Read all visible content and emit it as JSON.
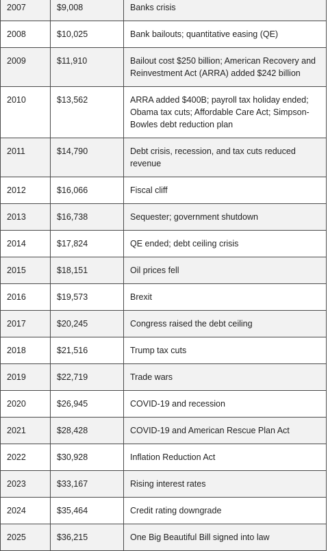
{
  "rows": [
    {
      "year": "2007",
      "debt": "$9,008",
      "event": "Banks crisis"
    },
    {
      "year": "2008",
      "debt": "$10,025",
      "event": "Bank bailouts; quantitative easing (QE)"
    },
    {
      "year": "2009",
      "debt": "$11,910",
      "event": "Bailout cost $250 billion; American Recovery and Reinvestment Act (ARRA) added $242 billion"
    },
    {
      "year": "2010",
      "debt": "$13,562",
      "event": "ARRA added $400B; payroll tax holiday ended; Obama tax cuts; Affordable Care Act; Simpson-Bowles debt reduction plan"
    },
    {
      "year": "2011",
      "debt": "$14,790",
      "event": "Debt crisis, recession, and tax cuts reduced revenue"
    },
    {
      "year": "2012",
      "debt": "$16,066",
      "event": "Fiscal cliff"
    },
    {
      "year": "2013",
      "debt": "$16,738",
      "event": "Sequester; government shutdown"
    },
    {
      "year": "2014",
      "debt": "$17,824",
      "event": "QE ended; debt ceiling crisis"
    },
    {
      "year": "2015",
      "debt": "$18,151",
      "event": "Oil prices fell"
    },
    {
      "year": "2016",
      "debt": "$19,573",
      "event": "Brexit"
    },
    {
      "year": "2017",
      "debt": "$20,245",
      "event": "Congress raised the debt ceiling"
    },
    {
      "year": "2018",
      "debt": "$21,516",
      "event": "Trump tax cuts"
    },
    {
      "year": "2019",
      "debt": "$22,719",
      "event": "Trade wars"
    },
    {
      "year": "2020",
      "debt": "$26,945",
      "event": "COVID-19 and recession"
    },
    {
      "year": "2021",
      "debt": "$28,428",
      "event": "COVID-19 and American Rescue Plan Act"
    },
    {
      "year": "2022",
      "debt": "$30,928",
      "event": "Inflation Reduction Act"
    },
    {
      "year": "2023",
      "debt": "$33,167",
      "event": "Rising interest rates"
    },
    {
      "year": "2024",
      "debt": "$35,464",
      "event": "Credit rating downgrade"
    },
    {
      "year": "2025",
      "debt": "$36,215",
      "event": "One Big Beautiful Bill signed into law"
    }
  ]
}
